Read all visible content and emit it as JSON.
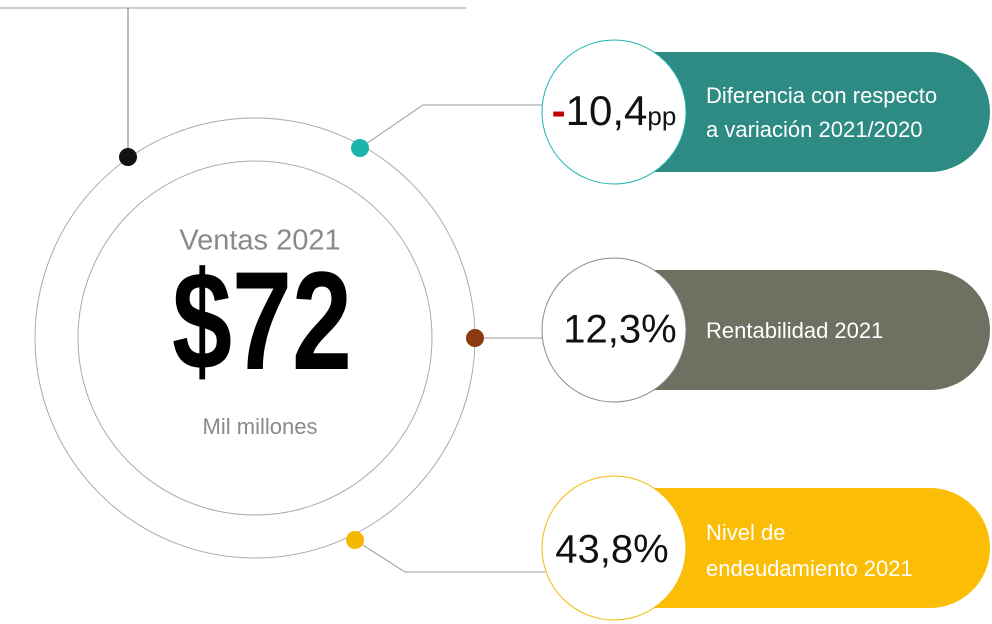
{
  "center": {
    "title": "Ventas 2021",
    "value": "$72",
    "unit": "Mil millones"
  },
  "items": [
    {
      "sign": "-",
      "value": "10,4",
      "unit": "pp",
      "label": [
        "Diferencia con respecto",
        "a variación 2021/2020"
      ]
    },
    {
      "value": "12,3%",
      "label": [
        "Rentabilidad 2021"
      ]
    },
    {
      "value": "43,8%",
      "label": [
        "Nivel de",
        "endeudamiento 2021"
      ]
    }
  ]
}
